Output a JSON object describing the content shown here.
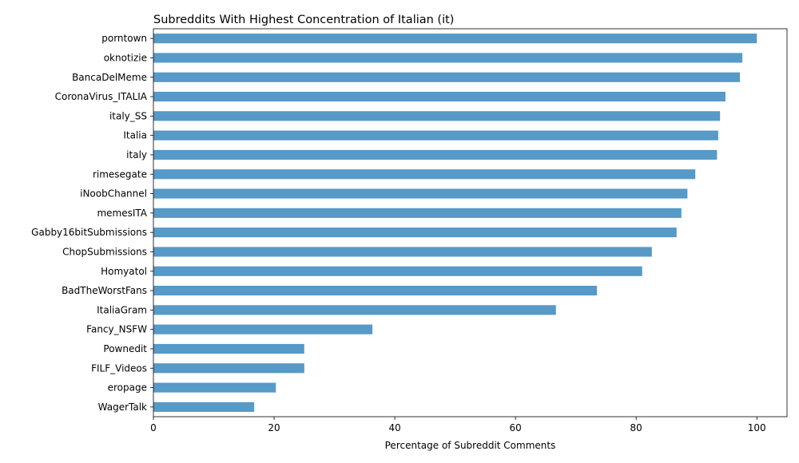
{
  "chart_data": {
    "type": "bar",
    "orientation": "horizontal",
    "title": "Subreddits With Highest Concentration of Italian (it)",
    "xlabel": "Percentage of Subreddit Comments",
    "ylabel": "",
    "xlim": [
      0,
      105
    ],
    "xticks": [
      0,
      20,
      40,
      60,
      80,
      100
    ],
    "grid": false,
    "bar_color": "#5799c7",
    "categories": [
      "porntown",
      "oknotizie",
      "BancaDelMeme",
      "CoronaVirus_ITALIA",
      "italy_SS",
      "Italia",
      "italy",
      "rimesegate",
      "iNoobChannel",
      "memesITA",
      "Gabby16bitSubmissions",
      "ChopSubmissions",
      "Homyatol",
      "BadTheWorstFans",
      "ItaliaGram",
      "Fancy_NSFW",
      "Pownedit",
      "FILF_Videos",
      "eropage",
      "WagerTalk"
    ],
    "values": [
      100.0,
      97.6,
      97.2,
      94.8,
      93.9,
      93.6,
      93.4,
      89.8,
      88.5,
      87.5,
      86.7,
      82.6,
      81.0,
      73.5,
      66.7,
      36.3,
      25.0,
      25.0,
      20.3,
      16.7
    ]
  }
}
